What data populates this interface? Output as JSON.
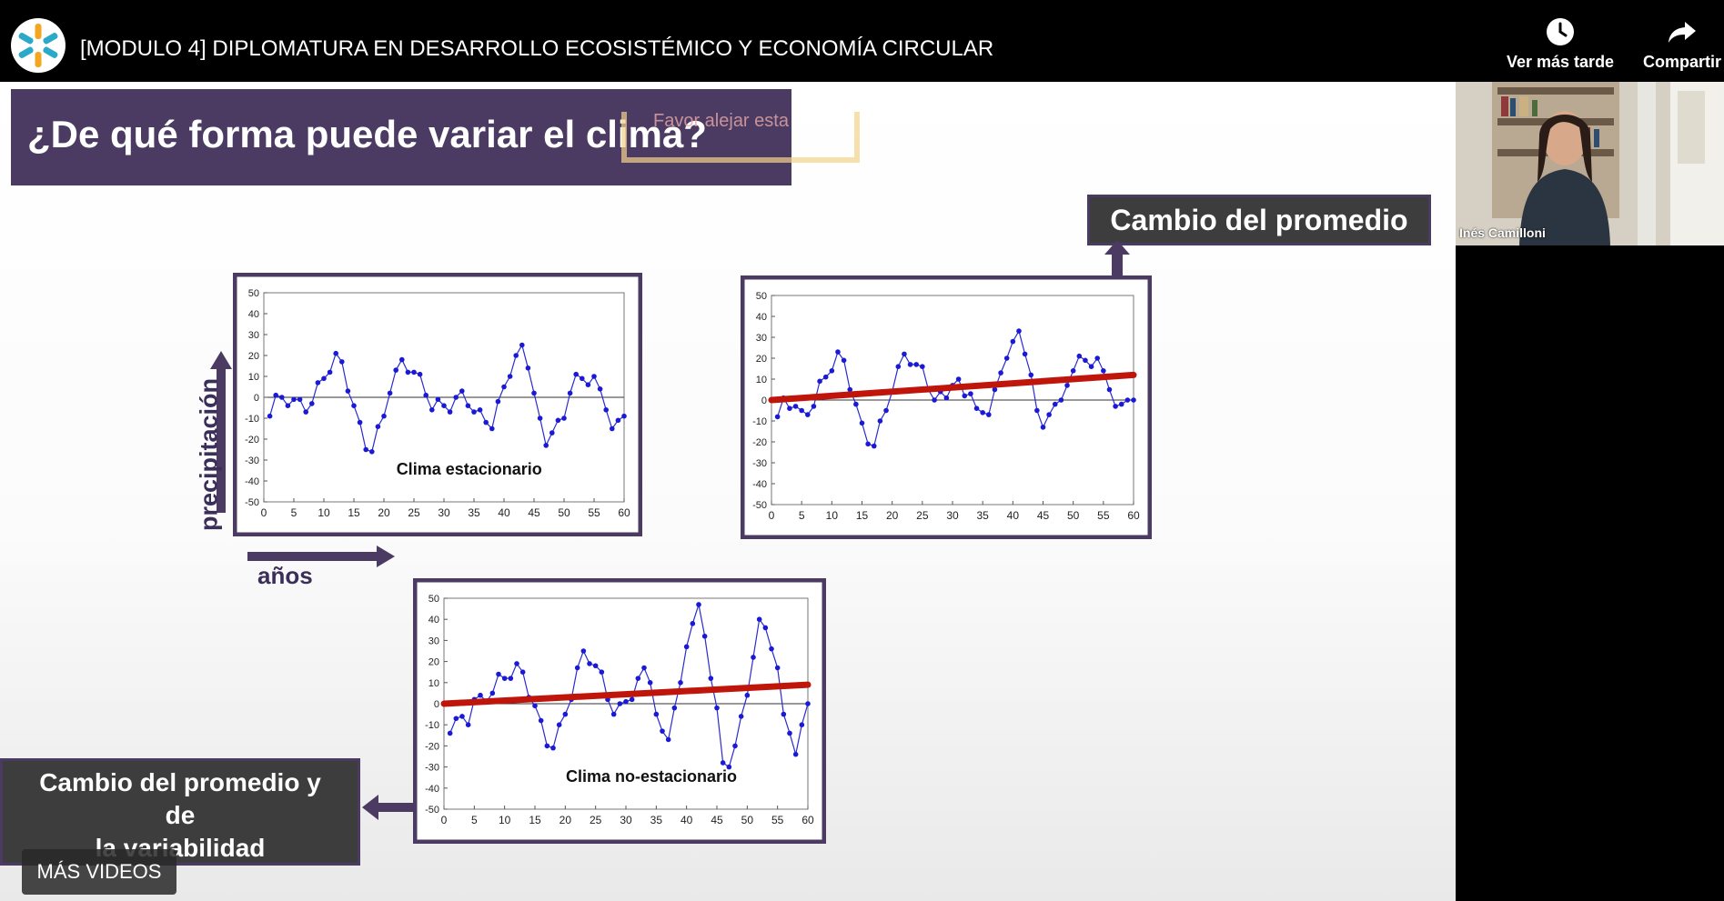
{
  "header": {
    "title": "[MODULO 4] DIPLOMATURA EN DESARROLLO ECOSISTÉMICO Y ECONOMÍA CIRCULAR",
    "watch_later_label": "Ver más tarde",
    "share_label": "Compartir"
  },
  "slide": {
    "heading": "¿De qué forma puede variar el clima?",
    "ghost_note": "Favor alejar esta",
    "y_axis_label": "precipitación",
    "x_axis_label": "años",
    "box_mean": "Cambio del promedio",
    "box_mean_var_line1": "Cambio del promedio y",
    "box_mean_var_line2": "de",
    "box_mean_var_line3": "la variabilidad"
  },
  "chart_data": [
    {
      "type": "line",
      "title": "Clima estacionario",
      "xlim": [
        0,
        60
      ],
      "ylim": [
        -50,
        50
      ],
      "xticks": [
        "0",
        "5",
        "10",
        "15",
        "20",
        "25",
        "30",
        "35",
        "40",
        "45",
        "50",
        "55",
        "60"
      ],
      "yticks": [
        "50",
        "40",
        "30",
        "20",
        "10",
        "0",
        "-10",
        "-20",
        "-30",
        "-40",
        "-50"
      ],
      "x": [
        1,
        2,
        3,
        4,
        5,
        6,
        7,
        8,
        9,
        10,
        11,
        12,
        13,
        14,
        15,
        16,
        17,
        18,
        19,
        20,
        21,
        22,
        23,
        24,
        25,
        26,
        27,
        28,
        29,
        30,
        31,
        32,
        33,
        34,
        35,
        36,
        37,
        38,
        39,
        40,
        41,
        42,
        43,
        44,
        45,
        46,
        47,
        48,
        49,
        50,
        51,
        52,
        53,
        54,
        55,
        56,
        57,
        58,
        59,
        60
      ],
      "values": [
        -9,
        1,
        0,
        -4,
        -1,
        -1,
        -7,
        -3,
        7,
        9,
        12,
        21,
        17,
        3,
        -4,
        -12,
        -25,
        -26,
        -14,
        -9,
        2,
        13,
        18,
        12,
        12,
        11,
        1,
        -6,
        -1,
        -4,
        -7,
        0,
        3,
        -4,
        -7,
        -6,
        -12,
        -15,
        -2,
        5,
        10,
        20,
        25,
        14,
        2,
        -10,
        -23,
        -17,
        -11,
        -10,
        2,
        11,
        9,
        6,
        10,
        4,
        -6,
        -15,
        -11,
        -9
      ],
      "trend": null
    },
    {
      "type": "line",
      "title": "",
      "xlim": [
        0,
        60
      ],
      "ylim": [
        -50,
        50
      ],
      "xticks": [
        "0",
        "5",
        "10",
        "15",
        "20",
        "25",
        "30",
        "35",
        "40",
        "45",
        "50",
        "55",
        "60"
      ],
      "yticks": [
        "50",
        "40",
        "30",
        "20",
        "10",
        "0",
        "-10",
        "-20",
        "-30",
        "-40",
        "-50"
      ],
      "x": [
        1,
        2,
        3,
        4,
        5,
        6,
        7,
        8,
        9,
        10,
        11,
        12,
        13,
        14,
        15,
        16,
        17,
        18,
        19,
        20,
        21,
        22,
        23,
        24,
        25,
        26,
        27,
        28,
        29,
        30,
        31,
        32,
        33,
        34,
        35,
        36,
        37,
        38,
        39,
        40,
        41,
        42,
        43,
        44,
        45,
        46,
        47,
        48,
        49,
        50,
        51,
        52,
        53,
        54,
        55,
        56,
        57,
        58,
        59,
        60
      ],
      "values": [
        -8,
        1,
        -4,
        -3,
        -5,
        -7,
        -3,
        9,
        11,
        14,
        23,
        19,
        5,
        -2,
        -11,
        -21,
        -22,
        -10,
        -5,
        4,
        16,
        22,
        17,
        17,
        16,
        5,
        0,
        4,
        1,
        7,
        10,
        2,
        3,
        -4,
        -6,
        -7,
        5,
        13,
        20,
        28,
        33,
        22,
        12,
        -5,
        -13,
        -7,
        -2,
        0,
        7,
        14,
        21,
        19,
        16,
        20,
        14,
        5,
        -3,
        -2,
        0,
        0
      ],
      "trend": [
        0,
        12
      ]
    },
    {
      "type": "line",
      "title": "Clima no-estacionario",
      "xlim": [
        0,
        60
      ],
      "ylim": [
        -50,
        50
      ],
      "xticks": [
        "0",
        "5",
        "10",
        "15",
        "20",
        "25",
        "30",
        "35",
        "40",
        "45",
        "50",
        "55",
        "60"
      ],
      "yticks": [
        "50",
        "40",
        "30",
        "20",
        "10",
        "0",
        "-10",
        "-20",
        "-30",
        "-40",
        "-50"
      ],
      "x": [
        1,
        2,
        3,
        4,
        5,
        6,
        7,
        8,
        9,
        10,
        11,
        12,
        13,
        14,
        15,
        16,
        17,
        18,
        19,
        20,
        21,
        22,
        23,
        24,
        25,
        26,
        27,
        28,
        29,
        30,
        31,
        32,
        33,
        34,
        35,
        36,
        37,
        38,
        39,
        40,
        41,
        42,
        43,
        44,
        45,
        46,
        47,
        48,
        49,
        50,
        51,
        52,
        53,
        54,
        55,
        56,
        57,
        58,
        59,
        60
      ],
      "values": [
        -14,
        -7,
        -6,
        -10,
        2,
        4,
        1,
        5,
        14,
        12,
        12,
        19,
        15,
        3,
        -1,
        -8,
        -20,
        -21,
        -10,
        -5,
        2,
        17,
        25,
        19,
        18,
        15,
        2,
        -5,
        0,
        1,
        2,
        12,
        17,
        10,
        -5,
        -13,
        -17,
        -2,
        10,
        27,
        38,
        47,
        32,
        12,
        -2,
        -28,
        -30,
        -20,
        -6,
        4,
        22,
        40,
        36,
        26,
        17,
        -5,
        -14,
        -24,
        -10,
        0
      ],
      "trend": [
        0,
        9
      ]
    }
  ],
  "participant": {
    "name": "Inés Camilloni"
  },
  "more_videos_label": "MÁS VIDEOS"
}
